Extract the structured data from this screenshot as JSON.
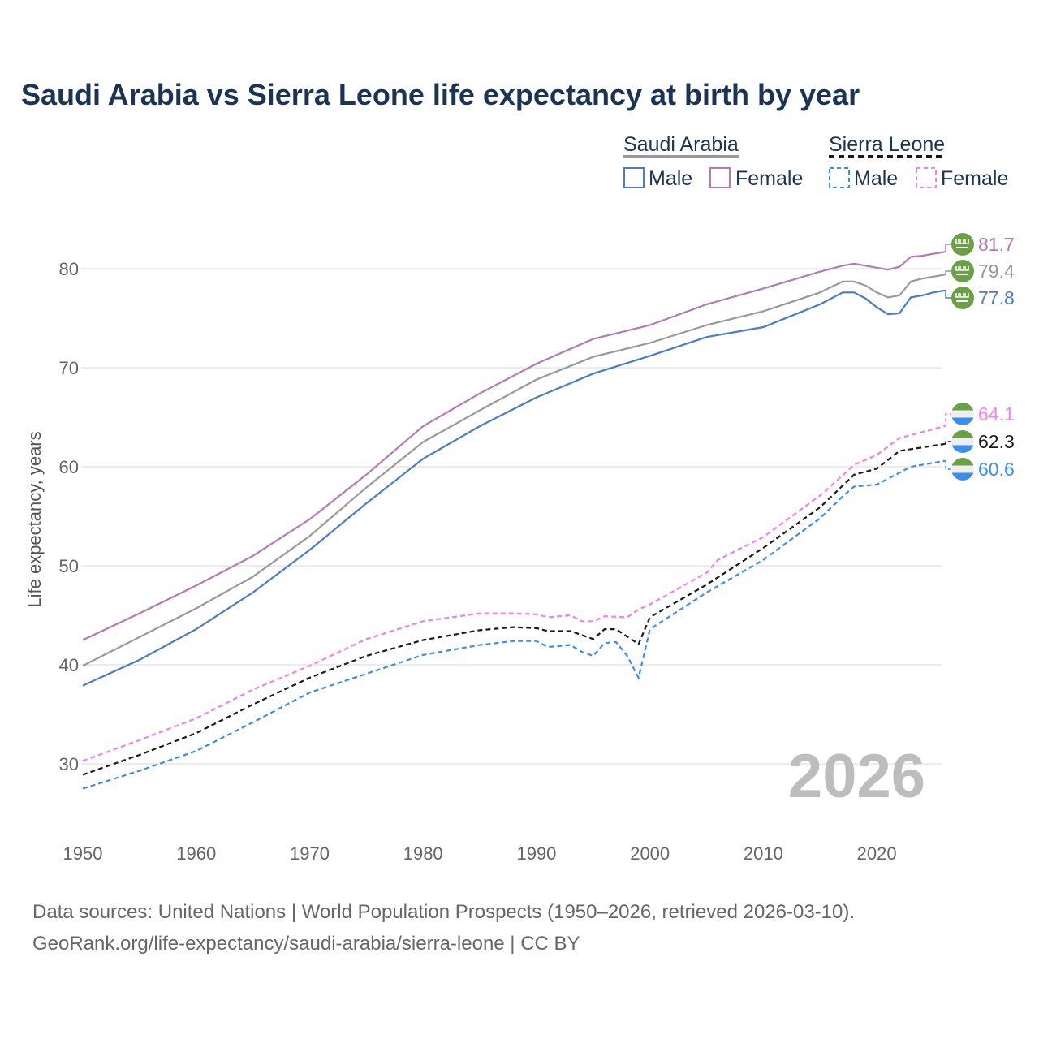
{
  "chart_data": {
    "type": "line",
    "title": "Saudi Arabia vs Sierra Leone life expectancy at birth by year",
    "ylabel": "Life expectancy, years",
    "xlabel": "",
    "xlim": [
      1950,
      2026
    ],
    "ylim": [
      24,
      85
    ],
    "yticks": [
      30,
      40,
      50,
      60,
      70,
      80
    ],
    "xticks": [
      1950,
      1960,
      1970,
      1980,
      1990,
      2000,
      2010,
      2020
    ],
    "grid": true,
    "watermark_year": "2026",
    "legend": {
      "placement": "top-right",
      "groups": [
        {
          "name": "Saudi Arabia",
          "entries": [
            "Male",
            "Female"
          ],
          "style": "solid"
        },
        {
          "name": "Sierra Leone",
          "entries": [
            "Male",
            "Female"
          ],
          "style": "dashed"
        }
      ]
    },
    "series": [
      {
        "name": "Saudi Arabia Female",
        "color": "#b57ab5",
        "dash": false,
        "end_label": "81.7",
        "flag": "saudi-arabia",
        "x": [
          1950,
          1955,
          1960,
          1965,
          1970,
          1975,
          1980,
          1985,
          1990,
          1995,
          2000,
          2005,
          2010,
          2015,
          2017,
          2018,
          2019,
          2020,
          2021,
          2022,
          2023,
          2024,
          2025,
          2026
        ],
        "y": [
          42.5,
          45.2,
          48.0,
          51.0,
          54.7,
          59.2,
          64.1,
          67.4,
          70.4,
          72.9,
          74.3,
          76.4,
          78.0,
          79.7,
          80.3,
          80.5,
          80.3,
          80.1,
          79.9,
          80.2,
          81.2,
          81.3,
          81.5,
          81.7
        ]
      },
      {
        "name": "Saudi Arabia Total",
        "color": "#999999",
        "dash": false,
        "end_label": "79.4",
        "flag": "saudi-arabia",
        "x": [
          1950,
          1955,
          1960,
          1965,
          1970,
          1975,
          1980,
          1985,
          1990,
          1995,
          2000,
          2005,
          2010,
          2015,
          2017,
          2018,
          2019,
          2020,
          2021,
          2022,
          2023,
          2024,
          2025,
          2026
        ],
        "y": [
          39.9,
          42.8,
          45.7,
          48.9,
          53.0,
          57.9,
          62.5,
          65.7,
          68.8,
          71.1,
          72.5,
          74.3,
          75.7,
          77.6,
          78.7,
          78.7,
          78.3,
          77.6,
          77.1,
          77.3,
          78.7,
          79.0,
          79.2,
          79.4
        ]
      },
      {
        "name": "Saudi Arabia Male",
        "color": "#4a7cc9",
        "dash": false,
        "end_label": "77.8",
        "flag": "saudi-arabia",
        "x": [
          1950,
          1955,
          1960,
          1965,
          1970,
          1975,
          1980,
          1985,
          1990,
          1995,
          2000,
          2005,
          2010,
          2015,
          2017,
          2018,
          2019,
          2020,
          2021,
          2022,
          2023,
          2024,
          2025,
          2026
        ],
        "y": [
          37.9,
          40.5,
          43.6,
          47.3,
          51.6,
          56.3,
          60.8,
          64.1,
          67.0,
          69.4,
          71.2,
          73.1,
          74.1,
          76.4,
          77.6,
          77.6,
          77.0,
          76.1,
          75.4,
          75.5,
          77.1,
          77.3,
          77.6,
          77.8
        ]
      },
      {
        "name": "Sierra Leone Female",
        "color": "#f57ef0",
        "dash": true,
        "end_label": "64.1",
        "flag": "sierra-leone",
        "x": [
          1950,
          1955,
          1960,
          1965,
          1970,
          1975,
          1980,
          1985,
          1988,
          1990,
          1991,
          1993,
          1994,
          1995,
          1996,
          1998,
          1999,
          2000,
          2005,
          2006,
          2010,
          2015,
          2016,
          2018,
          2020,
          2022,
          2026
        ],
        "y": [
          30.3,
          32.4,
          34.6,
          37.5,
          39.9,
          42.6,
          44.4,
          45.2,
          45.2,
          45.1,
          44.8,
          45.0,
          44.4,
          44.4,
          44.9,
          44.8,
          45.6,
          46.1,
          49.3,
          50.6,
          52.9,
          57.1,
          58.1,
          60.2,
          61.2,
          62.9,
          64.1
        ]
      },
      {
        "name": "Sierra Leone Total",
        "color": "#1a1a1a",
        "dash": true,
        "end_label": "62.3",
        "flag": "sierra-leone",
        "x": [
          1950,
          1955,
          1960,
          1965,
          1970,
          1975,
          1980,
          1985,
          1988,
          1990,
          1991,
          1993,
          1995,
          1996,
          1997,
          1999,
          2000,
          2005,
          2010,
          2015,
          2017,
          2018,
          2020,
          2022,
          2026
        ],
        "y": [
          28.9,
          30.9,
          33.1,
          36.0,
          38.7,
          40.9,
          42.5,
          43.5,
          43.8,
          43.7,
          43.4,
          43.4,
          42.6,
          43.6,
          43.6,
          42.1,
          44.8,
          48.1,
          51.8,
          55.9,
          58.1,
          59.2,
          59.8,
          61.6,
          62.3
        ]
      },
      {
        "name": "Sierra Leone Male",
        "color": "#3b8ef0",
        "dash": true,
        "end_label": "60.6",
        "flag": "sierra-leone",
        "x": [
          1950,
          1955,
          1960,
          1965,
          1970,
          1975,
          1980,
          1985,
          1988,
          1990,
          1991,
          1993,
          1994,
          1995,
          1996,
          1997,
          1998,
          1999,
          2000,
          2005,
          2010,
          2015,
          2017,
          2018,
          2020,
          2023,
          2026
        ],
        "y": [
          27.5,
          29.3,
          31.3,
          34.2,
          37.2,
          39.1,
          41.0,
          42.0,
          42.4,
          42.4,
          41.8,
          42.0,
          41.3,
          40.9,
          42.2,
          42.3,
          40.9,
          38.7,
          43.6,
          47.3,
          50.6,
          54.8,
          57.0,
          58.0,
          58.2,
          60.0,
          60.6
        ]
      }
    ],
    "source_line1": "Data sources: United Nations | World Population Prospects (1950–2026, retrieved 2026-03-10).",
    "source_line2": "GeoRank.org/life-expectancy/saudi-arabia/sierra-leone | CC BY"
  }
}
